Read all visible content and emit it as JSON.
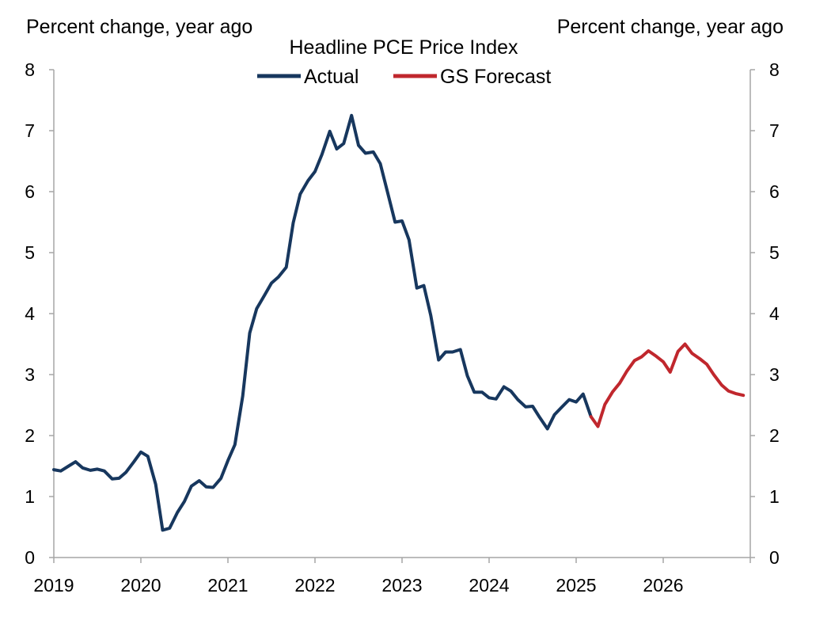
{
  "chart_data": {
    "type": "line",
    "title": "Headline PCE Price Index",
    "left_axis_label": "Percent change, year ago",
    "right_axis_label": "Percent change, year ago",
    "ylim": [
      0,
      8
    ],
    "y_ticks": [
      "0",
      "1",
      "2",
      "3",
      "4",
      "5",
      "6",
      "7",
      "8"
    ],
    "x_ticks": [
      "2019",
      "2020",
      "2021",
      "2022",
      "2023",
      "2024",
      "2025",
      "2026"
    ],
    "x_tick_values": [
      2019,
      2020,
      2021,
      2022,
      2023,
      2024,
      2025,
      2026
    ],
    "xlim": [
      2019,
      2027
    ],
    "legend_position": "top-center",
    "series": [
      {
        "name": "Actual",
        "color": "#17375e",
        "points": [
          [
            2019.0,
            1.44
          ],
          [
            2019.08,
            1.42
          ],
          [
            2019.17,
            1.5
          ],
          [
            2019.25,
            1.57
          ],
          [
            2019.33,
            1.47
          ],
          [
            2019.42,
            1.43
          ],
          [
            2019.5,
            1.45
          ],
          [
            2019.58,
            1.42
          ],
          [
            2019.67,
            1.29
          ],
          [
            2019.75,
            1.3
          ],
          [
            2019.83,
            1.4
          ],
          [
            2019.92,
            1.57
          ],
          [
            2020.0,
            1.73
          ],
          [
            2020.08,
            1.66
          ],
          [
            2020.17,
            1.2
          ],
          [
            2020.25,
            0.45
          ],
          [
            2020.33,
            0.48
          ],
          [
            2020.42,
            0.74
          ],
          [
            2020.5,
            0.92
          ],
          [
            2020.58,
            1.17
          ],
          [
            2020.67,
            1.26
          ],
          [
            2020.75,
            1.16
          ],
          [
            2020.83,
            1.15
          ],
          [
            2020.92,
            1.3
          ],
          [
            2021.0,
            1.59
          ],
          [
            2021.08,
            1.85
          ],
          [
            2021.17,
            2.65
          ],
          [
            2021.25,
            3.68
          ],
          [
            2021.33,
            4.08
          ],
          [
            2021.42,
            4.3
          ],
          [
            2021.5,
            4.5
          ],
          [
            2021.58,
            4.6
          ],
          [
            2021.67,
            4.76
          ],
          [
            2021.75,
            5.49
          ],
          [
            2021.83,
            5.96
          ],
          [
            2021.92,
            6.18
          ],
          [
            2022.0,
            6.33
          ],
          [
            2022.08,
            6.61
          ],
          [
            2022.17,
            6.99
          ],
          [
            2022.25,
            6.7
          ],
          [
            2022.33,
            6.79
          ],
          [
            2022.42,
            7.25
          ],
          [
            2022.5,
            6.76
          ],
          [
            2022.58,
            6.63
          ],
          [
            2022.67,
            6.65
          ],
          [
            2022.75,
            6.46
          ],
          [
            2022.83,
            6.01
          ],
          [
            2022.92,
            5.5
          ],
          [
            2023.0,
            5.52
          ],
          [
            2023.08,
            5.21
          ],
          [
            2023.17,
            4.42
          ],
          [
            2023.25,
            4.46
          ],
          [
            2023.33,
            3.97
          ],
          [
            2023.42,
            3.24
          ],
          [
            2023.5,
            3.37
          ],
          [
            2023.58,
            3.37
          ],
          [
            2023.67,
            3.41
          ],
          [
            2023.75,
            2.98
          ],
          [
            2023.83,
            2.71
          ],
          [
            2023.92,
            2.71
          ],
          [
            2024.0,
            2.62
          ],
          [
            2024.08,
            2.6
          ],
          [
            2024.17,
            2.8
          ],
          [
            2024.25,
            2.73
          ],
          [
            2024.33,
            2.59
          ],
          [
            2024.42,
            2.47
          ],
          [
            2024.5,
            2.48
          ],
          [
            2024.58,
            2.3
          ],
          [
            2024.67,
            2.11
          ],
          [
            2024.75,
            2.34
          ],
          [
            2024.83,
            2.46
          ],
          [
            2024.92,
            2.59
          ],
          [
            2025.0,
            2.55
          ],
          [
            2025.08,
            2.68
          ],
          [
            2025.17,
            2.31
          ]
        ]
      },
      {
        "name": "GS Forecast",
        "color": "#c0272d",
        "points": [
          [
            2025.17,
            2.31
          ],
          [
            2025.25,
            2.15
          ],
          [
            2025.33,
            2.51
          ],
          [
            2025.42,
            2.72
          ],
          [
            2025.5,
            2.86
          ],
          [
            2025.58,
            3.05
          ],
          [
            2025.67,
            3.23
          ],
          [
            2025.75,
            3.29
          ],
          [
            2025.83,
            3.39
          ],
          [
            2025.92,
            3.3
          ],
          [
            2026.0,
            3.21
          ],
          [
            2026.08,
            3.04
          ],
          [
            2026.17,
            3.38
          ],
          [
            2026.25,
            3.5
          ],
          [
            2026.33,
            3.35
          ],
          [
            2026.42,
            3.26
          ],
          [
            2026.5,
            3.17
          ],
          [
            2026.58,
            3.0
          ],
          [
            2026.67,
            2.83
          ],
          [
            2026.75,
            2.73
          ],
          [
            2026.83,
            2.69
          ],
          [
            2026.92,
            2.66
          ]
        ]
      }
    ]
  }
}
